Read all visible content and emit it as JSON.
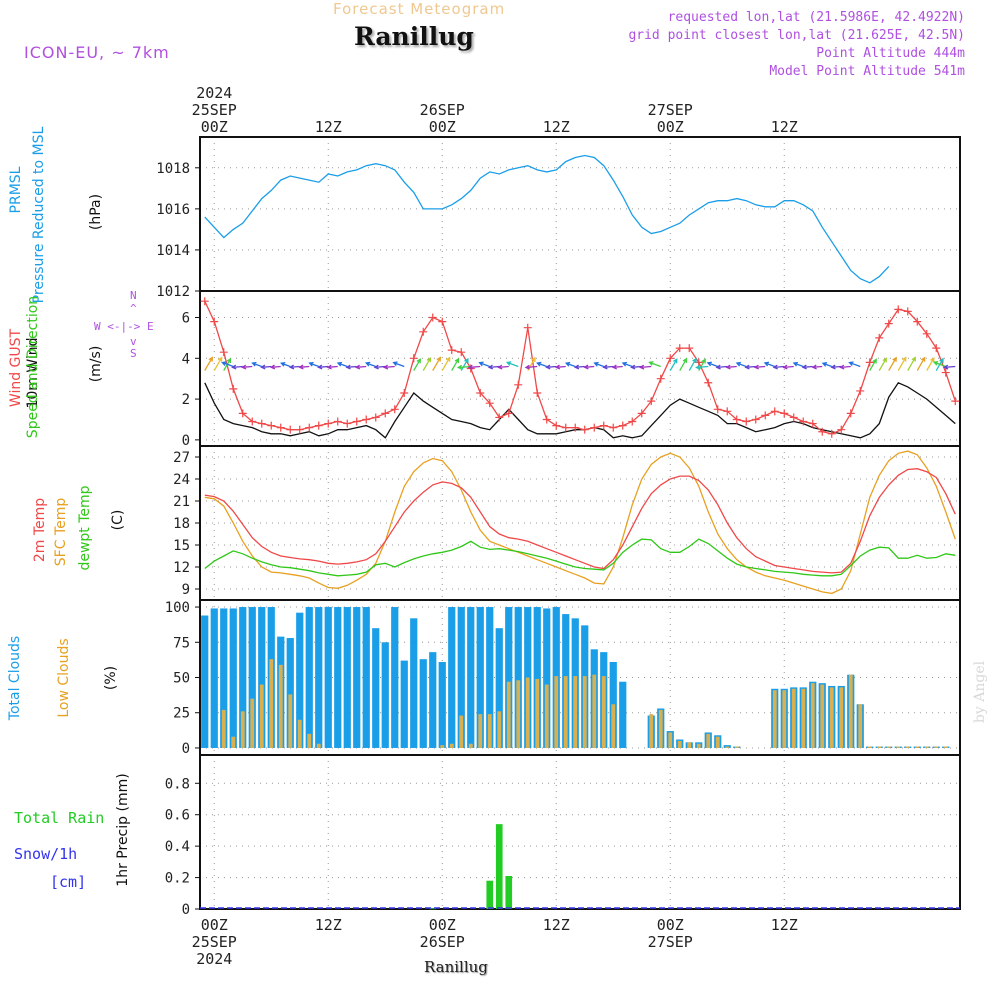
{
  "header": {
    "subtitle": "Forecast Meteogram",
    "title": "Ranillug",
    "model": "ICON-EU, ~ 7km",
    "info_lines": [
      "requested lon,lat (21.5986E, 42.4922N)",
      "grid point closest lon,lat (21.625E, 42.5N)",
      "Point Altitude 444m",
      "Model Point Altitude 541m"
    ],
    "credit": "by Angel",
    "footer_location": "Ranillug"
  },
  "colors": {
    "pressure": "#1a9ee8",
    "gust": "#f04848",
    "wind": "#111111",
    "temp2m": "#f04848",
    "sfc": "#e8a020",
    "dewpt": "#30c818",
    "total_clouds": "#1a9ee8",
    "low_clouds": "#d8b050",
    "rain": "#22cc22",
    "snow": "#3333ee",
    "arrow_legend": "#b050e0"
  },
  "time_axis": {
    "top": [
      {
        "hour": 1,
        "lines": [
          "2024",
          "25SEP",
          "00Z"
        ]
      },
      {
        "hour": 13,
        "lines": [
          "12Z"
        ]
      },
      {
        "hour": 25,
        "lines": [
          "26SEP",
          "00Z"
        ]
      },
      {
        "hour": 37,
        "lines": [
          "12Z"
        ]
      },
      {
        "hour": 49,
        "lines": [
          "27SEP",
          "00Z"
        ]
      },
      {
        "hour": 61,
        "lines": [
          "12Z"
        ]
      }
    ],
    "bottom": [
      {
        "hour": 1,
        "lines": [
          "00Z",
          "25SEP",
          "2024"
        ]
      },
      {
        "hour": 13,
        "lines": [
          "12Z"
        ]
      },
      {
        "hour": 25,
        "lines": [
          "00Z",
          "26SEP"
        ]
      },
      {
        "hour": 37,
        "lines": [
          "12Z"
        ]
      },
      {
        "hour": 49,
        "lines": [
          "00Z",
          "27SEP"
        ]
      },
      {
        "hour": 61,
        "lines": [
          "12Z"
        ]
      }
    ]
  },
  "labels": {
    "pressure": {
      "name": "PRMSL",
      "desc": "Pressure Reduced to MSL",
      "unit": "(hPa)"
    },
    "wind": {
      "gust": "Wind GUST",
      "wind10": "10m Wind",
      "dir": "Speed and Direction",
      "unit": "(m/s)",
      "compass_n": "N",
      "compass_s": "S",
      "compass_ew": "W <-|-> E",
      "compass_top": "^",
      "compass_bottom": "v"
    },
    "temp": {
      "t2m": "2m Temp",
      "sfc": "SFC Temp",
      "dew": "dewpt Temp",
      "unit": "(C)"
    },
    "clouds": {
      "total": "Total Clouds",
      "low": "Low Clouds",
      "unit": "(%)"
    },
    "precip": {
      "rain": "Total  Rain",
      "snow": "Snow/1h",
      "snow_unit": "[cm]",
      "axis": "1hr Precip (mm)"
    }
  },
  "chart_data": [
    {
      "type": "line",
      "title": "PRMSL Pressure Reduced to MSL",
      "ylabel": "(hPa)",
      "x": "hours since 2024-09-24 23Z (x=1 is 25SEP 00Z)",
      "ylim": [
        1012,
        1019.5
      ],
      "yticks": [
        1012,
        1014,
        1016,
        1018
      ],
      "series": [
        {
          "name": "PRMSL",
          "values": [
            1015.6,
            1015.1,
            1014.6,
            1015.0,
            1015.3,
            1015.9,
            1016.5,
            1016.9,
            1017.4,
            1017.6,
            1017.5,
            1017.4,
            1017.3,
            1017.7,
            1017.6,
            1017.8,
            1017.9,
            1018.1,
            1018.2,
            1018.1,
            1017.9,
            1017.3,
            1016.8,
            1016.0,
            1016.0,
            1016.0,
            1016.2,
            1016.5,
            1016.9,
            1017.5,
            1017.8,
            1017.7,
            1017.9,
            1018.0,
            1018.1,
            1017.9,
            1017.8,
            1017.9,
            1018.3,
            1018.5,
            1018.6,
            1018.5,
            1018.1,
            1017.4,
            1016.6,
            1015.7,
            1015.1,
            1014.8,
            1014.9,
            1015.1,
            1015.3,
            1015.7,
            1016.0,
            1016.3,
            1016.4,
            1016.4,
            1016.5,
            1016.4,
            1016.2,
            1016.1,
            1016.1,
            1016.4,
            1016.4,
            1016.2,
            1015.9,
            1015.1,
            1014.4,
            1013.7,
            1013.0,
            1012.6,
            1012.4,
            1012.7,
            1013.2
          ]
        }
      ]
    },
    {
      "type": "line",
      "title": "Wind GUST / 10m Wind Speed and Direction",
      "ylabel": "(m/s)",
      "ylim": [
        -0.3,
        7.3
      ],
      "yticks": [
        0,
        2,
        4,
        6
      ],
      "series": [
        {
          "name": "Wind GUST",
          "values": [
            6.8,
            5.8,
            4.3,
            2.5,
            1.3,
            0.9,
            0.8,
            0.7,
            0.6,
            0.5,
            0.5,
            0.6,
            0.7,
            0.8,
            0.9,
            0.8,
            0.9,
            1.0,
            1.1,
            1.3,
            1.5,
            2.3,
            4.0,
            5.3,
            6.0,
            5.8,
            4.4,
            4.3,
            3.5,
            2.3,
            1.8,
            1.1,
            1.3,
            2.7,
            5.5,
            2.3,
            1.0,
            0.7,
            0.6,
            0.6,
            0.5,
            0.6,
            0.7,
            0.6,
            0.7,
            0.9,
            1.3,
            1.9,
            3.0,
            4.0,
            4.5,
            4.5,
            3.8,
            2.8,
            1.5,
            1.4,
            1.0,
            0.9,
            1.0,
            1.2,
            1.4,
            1.3,
            1.1,
            0.9,
            0.8,
            0.4,
            0.3,
            0.5,
            1.3,
            2.4,
            3.8,
            5.0,
            5.7,
            6.4,
            6.3,
            5.8,
            5.2,
            4.5,
            3.3,
            1.9
          ]
        },
        {
          "name": "10m Wind",
          "values": [
            2.8,
            1.8,
            1.0,
            0.8,
            0.7,
            0.6,
            0.4,
            0.3,
            0.3,
            0.2,
            0.3,
            0.4,
            0.2,
            0.3,
            0.5,
            0.5,
            0.6,
            0.7,
            0.5,
            0.1,
            0.9,
            1.6,
            2.3,
            1.9,
            1.6,
            1.3,
            1.0,
            0.9,
            0.8,
            0.6,
            0.5,
            1.0,
            1.5,
            1.0,
            0.5,
            0.3,
            0.3,
            0.3,
            0.4,
            0.5,
            0.5,
            0.6,
            0.5,
            0.1,
            0.2,
            0.1,
            0.2,
            0.7,
            1.2,
            1.7,
            2.0,
            1.8,
            1.6,
            1.4,
            1.2,
            0.8,
            0.8,
            0.6,
            0.4,
            0.5,
            0.6,
            0.8,
            0.9,
            0.8,
            0.6,
            0.5,
            0.4,
            0.3,
            0.2,
            0.1,
            0.3,
            0.8,
            2.1,
            2.8,
            2.6,
            2.3,
            2.0,
            1.6,
            1.2,
            0.8
          ]
        }
      ]
    },
    {
      "type": "line",
      "title": "2m Temp / SFC Temp / dewpt Temp",
      "ylabel": "(C)",
      "ylim": [
        7.5,
        28.5
      ],
      "yticks": [
        9,
        12,
        15,
        18,
        21,
        24,
        27
      ],
      "series": [
        {
          "name": "2m Temp",
          "values": [
            21.8,
            21.6,
            21.0,
            19.6,
            17.8,
            16.0,
            14.8,
            14.0,
            13.5,
            13.3,
            13.1,
            13.0,
            12.8,
            12.5,
            12.4,
            12.5,
            12.7,
            13.0,
            13.8,
            15.5,
            17.5,
            19.5,
            21.0,
            22.2,
            23.2,
            23.6,
            23.4,
            22.8,
            21.5,
            19.5,
            17.5,
            16.5,
            16.0,
            15.8,
            15.5,
            15.0,
            14.5,
            14.0,
            13.5,
            13.0,
            12.5,
            12.0,
            11.8,
            13.0,
            15.0,
            17.5,
            20.0,
            22.0,
            23.2,
            24.0,
            24.4,
            24.4,
            23.8,
            22.5,
            20.5,
            18.0,
            16.0,
            14.5,
            13.4,
            12.8,
            12.2,
            12.0,
            11.8,
            11.6,
            11.4,
            11.3,
            11.2,
            11.3,
            12.5,
            15.5,
            19.0,
            21.5,
            23.2,
            24.5,
            25.3,
            25.4,
            25.0,
            24.2,
            22.0,
            19.2
          ]
        },
        {
          "name": "SFC Temp",
          "values": [
            21.5,
            21.3,
            20.3,
            18.0,
            15.5,
            13.5,
            12.0,
            11.3,
            11.2,
            11.0,
            10.8,
            10.5,
            9.8,
            9.2,
            9.1,
            9.5,
            10.2,
            11.0,
            12.5,
            15.5,
            19.5,
            23.0,
            25.0,
            26.2,
            26.8,
            26.5,
            25.0,
            22.5,
            19.5,
            17.0,
            15.5,
            15.0,
            14.5,
            14.0,
            13.5,
            13.0,
            12.5,
            12.0,
            11.5,
            11.0,
            10.5,
            9.8,
            9.7,
            12.0,
            16.0,
            20.5,
            24.0,
            26.0,
            27.0,
            27.5,
            27.0,
            25.5,
            23.0,
            19.5,
            16.5,
            14.5,
            13.0,
            12.0,
            11.3,
            10.8,
            10.5,
            10.2,
            9.8,
            9.4,
            9.0,
            8.6,
            8.4,
            9.0,
            11.5,
            16.5,
            21.5,
            24.5,
            26.5,
            27.5,
            27.8,
            27.3,
            25.5,
            23.0,
            19.5,
            15.8
          ]
        },
        {
          "name": "dewpt Temp",
          "values": [
            11.8,
            12.8,
            13.5,
            14.2,
            13.8,
            13.2,
            12.7,
            12.3,
            12.0,
            11.9,
            11.7,
            11.5,
            11.2,
            11.0,
            10.8,
            10.9,
            11.0,
            11.3,
            12.3,
            12.5,
            12.0,
            12.6,
            13.1,
            13.5,
            13.8,
            14.0,
            14.3,
            14.8,
            15.5,
            14.7,
            14.4,
            14.5,
            14.3,
            14.1,
            13.8,
            13.5,
            13.2,
            12.8,
            12.4,
            12.0,
            11.8,
            11.7,
            11.6,
            12.5,
            14.0,
            15.0,
            15.8,
            15.7,
            14.5,
            14.0,
            14.0,
            14.8,
            15.8,
            15.2,
            14.2,
            13.2,
            12.4,
            12.0,
            11.8,
            11.6,
            11.4,
            11.3,
            11.2,
            11.0,
            10.9,
            10.8,
            10.8,
            11.0,
            12.2,
            13.5,
            14.3,
            14.7,
            14.6,
            13.2,
            13.2,
            13.6,
            13.2,
            13.3,
            13.8,
            13.6
          ]
        }
      ]
    },
    {
      "type": "bar",
      "title": "Total Clouds / Low Clouds",
      "ylabel": "(%)",
      "ylim": [
        -5,
        105
      ],
      "yticks": [
        0,
        25,
        50,
        75,
        100
      ],
      "series": [
        {
          "name": "Total Clouds",
          "values": [
            94,
            99,
            99,
            99,
            100,
            100,
            100,
            100,
            79,
            78,
            96,
            100,
            100,
            100,
            100,
            100,
            100,
            100,
            85,
            75,
            100,
            62,
            92,
            63,
            68,
            61,
            100,
            100,
            100,
            100,
            100,
            85,
            100,
            100,
            100,
            100,
            99,
            100,
            95,
            92,
            87,
            70,
            68,
            61,
            47,
            0,
            0,
            23,
            28,
            12,
            6,
            4,
            4,
            11,
            9,
            2,
            1,
            0,
            0,
            0,
            42,
            42,
            43,
            43,
            47,
            46,
            44,
            44,
            52,
            31,
            1,
            1,
            1,
            1,
            1,
            1,
            1,
            1,
            1,
            0
          ]
        },
        {
          "name": "Low Clouds",
          "values": [
            0,
            0,
            27,
            8,
            26,
            35,
            45,
            63,
            59,
            38,
            20,
            10,
            3,
            0,
            0,
            0,
            0,
            0,
            0,
            0,
            0,
            0,
            0,
            0,
            0,
            2,
            3,
            23,
            3,
            24,
            24,
            26,
            47,
            48,
            50,
            49,
            45,
            51,
            51,
            51,
            51,
            52,
            51,
            31,
            0,
            0,
            0,
            24,
            27,
            11,
            5,
            4,
            3,
            10,
            8,
            1,
            1,
            0,
            0,
            0,
            41,
            41,
            42,
            42,
            46,
            45,
            43,
            43,
            52,
            31,
            1,
            1,
            1,
            1,
            1,
            1,
            1,
            1,
            1,
            0
          ]
        }
      ]
    },
    {
      "type": "bar",
      "title": "Total Rain / Snow 1h",
      "ylabel": "1hr Precip (mm)",
      "ylim": [
        0,
        0.98
      ],
      "yticks": [
        0,
        0.2,
        0.4,
        0.6,
        0.8
      ],
      "series": [
        {
          "name": "Total Rain",
          "values": [
            0,
            0,
            0,
            0,
            0,
            0,
            0,
            0,
            0,
            0,
            0,
            0,
            0,
            0,
            0,
            0,
            0,
            0,
            0,
            0,
            0,
            0,
            0,
            0,
            0.005,
            0,
            0,
            0,
            0,
            0,
            0.18,
            0.54,
            0.21,
            0,
            0,
            0,
            0,
            0,
            0,
            0,
            0,
            0,
            0,
            0,
            0,
            0,
            0,
            0,
            0,
            0,
            0,
            0,
            0,
            0,
            0,
            0,
            0,
            0,
            0,
            0,
            0,
            0,
            0,
            0,
            0,
            0,
            0,
            0,
            0,
            0,
            0,
            0,
            0,
            0,
            0,
            0,
            0,
            0,
            0,
            0
          ]
        },
        {
          "name": "Snow/1h",
          "values": [
            0,
            0,
            0,
            0,
            0,
            0,
            0,
            0,
            0,
            0,
            0,
            0,
            0,
            0,
            0,
            0,
            0,
            0,
            0,
            0,
            0,
            0,
            0,
            0,
            0,
            0,
            0,
            0,
            0,
            0,
            0,
            0,
            0,
            0,
            0,
            0,
            0,
            0,
            0,
            0,
            0,
            0,
            0,
            0,
            0,
            0,
            0,
            0,
            0,
            0,
            0,
            0,
            0,
            0,
            0,
            0,
            0,
            0,
            0,
            0,
            0,
            0,
            0,
            0,
            0,
            0,
            0,
            0,
            0,
            0,
            0,
            0,
            0,
            0,
            0,
            0,
            0,
            0,
            0,
            0
          ]
        }
      ]
    }
  ]
}
